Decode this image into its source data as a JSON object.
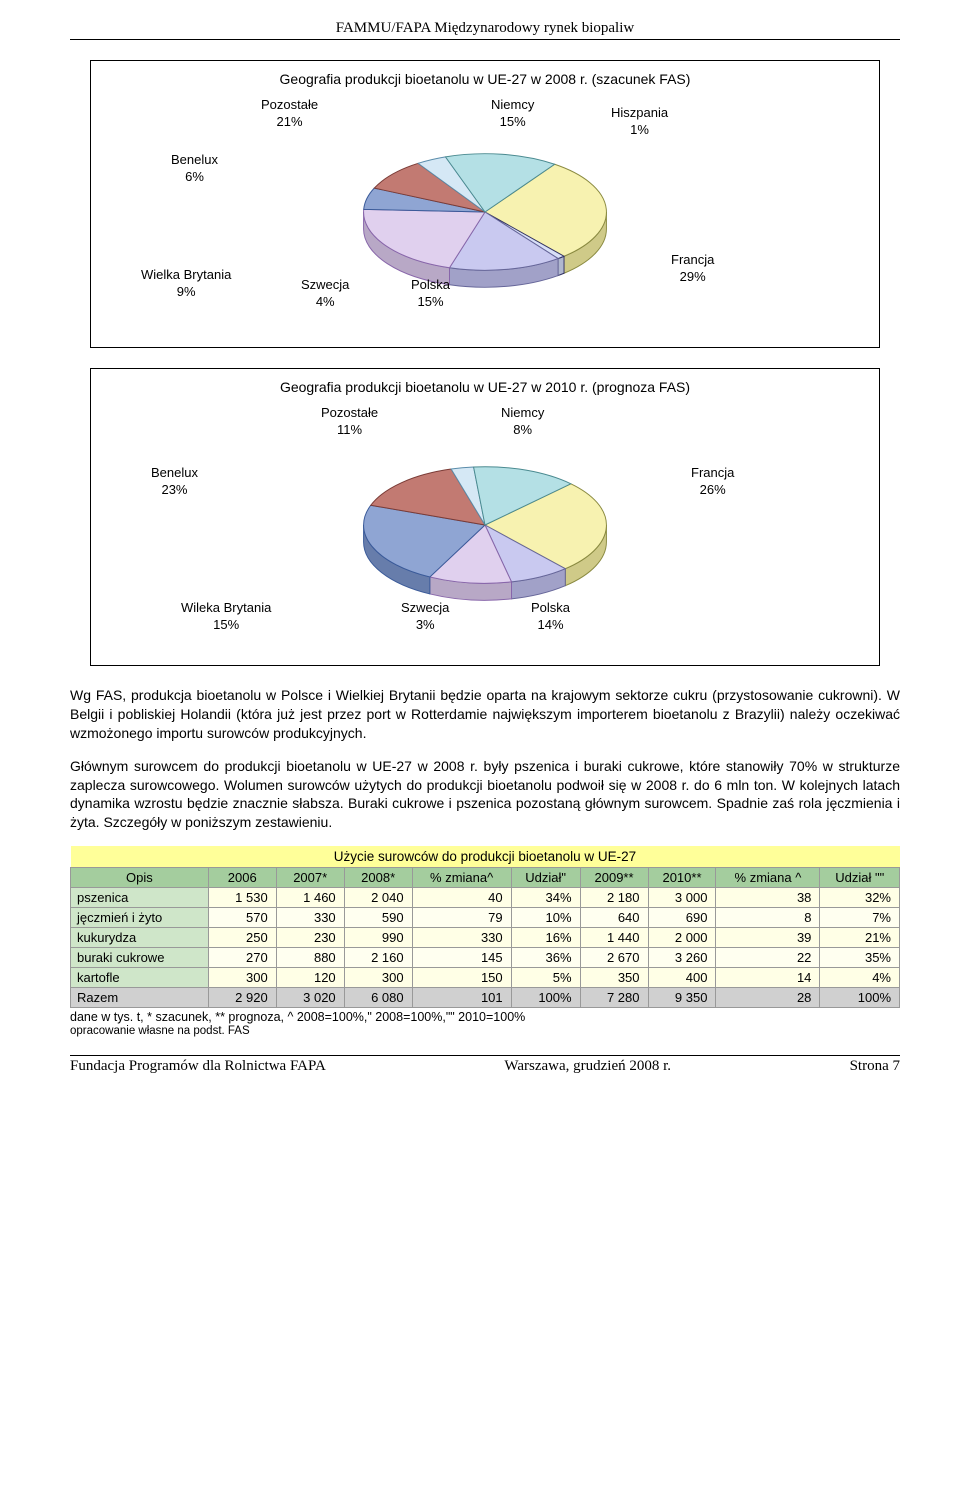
{
  "header": "FAMMU/FAPA  Międzynarodowy rynek biopaliw",
  "chart1": {
    "title": "Geografia produkcji bioetanolu w UE-27 w 2008 r. (szacunek FAS)",
    "slices": [
      {
        "label": "Francja",
        "pct": "29%",
        "val": 29,
        "color": "#f7f2b0",
        "stroke": "#8a8a40"
      },
      {
        "label": "Hiszpania",
        "pct": "1%",
        "val": 1,
        "color": "#d8dff7",
        "stroke": "#333366"
      },
      {
        "label": "Niemcy",
        "pct": "15%",
        "val": 15,
        "color": "#c9c9f0",
        "stroke": "#666699"
      },
      {
        "label": "Pozostałe",
        "pct": "21%",
        "val": 21,
        "color": "#e0d0ee",
        "stroke": "#8866aa"
      },
      {
        "label": "Benelux",
        "pct": "6%",
        "val": 6,
        "color": "#8fa5d3",
        "stroke": "#3a5a99"
      },
      {
        "label": "Wielka Brytania",
        "pct": "9%",
        "val": 9,
        "color": "#c27a72",
        "stroke": "#7a3b36"
      },
      {
        "label": "Szwecja",
        "pct": "4%",
        "val": 4,
        "color": "#d5e8f5",
        "stroke": "#5a8caa"
      },
      {
        "label": "Polska",
        "pct": "15%",
        "val": 15,
        "color": "#b4e0e5",
        "stroke": "#4a8a90"
      }
    ],
    "labels": {
      "pozostale": {
        "name": "Pozostałe",
        "pct": "21%"
      },
      "benelux": {
        "name": "Benelux",
        "pct": "6%"
      },
      "niemcy": {
        "name": "Niemcy",
        "pct": "15%"
      },
      "hiszpania": {
        "name": "Hiszpania",
        "pct": "1%"
      },
      "wb": {
        "name": "Wielka Brytania",
        "pct": "9%"
      },
      "szwecja": {
        "name": "Szwecja",
        "pct": "4%"
      },
      "polska": {
        "name": "Polska",
        "pct": "15%"
      },
      "francja": {
        "name": "Francja",
        "pct": "29%"
      }
    }
  },
  "chart2": {
    "title": "Geografia produkcji bioetanolu w UE-27 w 2010 r. (prognoza FAS)",
    "slices": [
      {
        "label": "Francja",
        "pct": "26%",
        "val": 26,
        "color": "#f7f2b0",
        "stroke": "#8a8a40"
      },
      {
        "label": "Niemcy",
        "pct": "8%",
        "val": 8,
        "color": "#c9c9f0",
        "stroke": "#666699"
      },
      {
        "label": "Pozostałe",
        "pct": "11%",
        "val": 11,
        "color": "#e0d0ee",
        "stroke": "#8866aa"
      },
      {
        "label": "Benelux",
        "pct": "23%",
        "val": 23,
        "color": "#8fa5d3",
        "stroke": "#3a5a99"
      },
      {
        "label": "Wileka Brytania",
        "pct": "15%",
        "val": 15,
        "color": "#c27a72",
        "stroke": "#7a3b36"
      },
      {
        "label": "Szwecja",
        "pct": "3%",
        "val": 3,
        "color": "#d5e8f5",
        "stroke": "#5a8caa"
      },
      {
        "label": "Polska",
        "pct": "14%",
        "val": 14,
        "color": "#b4e0e5",
        "stroke": "#4a8a90"
      }
    ],
    "labels": {
      "pozostale": {
        "name": "Pozostałe",
        "pct": "11%"
      },
      "niemcy": {
        "name": "Niemcy",
        "pct": "8%"
      },
      "benelux": {
        "name": "Benelux",
        "pct": "23%"
      },
      "francja": {
        "name": "Francja",
        "pct": "26%"
      },
      "wb": {
        "name": "Wileka Brytania",
        "pct": "15%"
      },
      "szwecja": {
        "name": "Szwecja",
        "pct": "3%"
      },
      "polska": {
        "name": "Polska",
        "pct": "14%"
      }
    }
  },
  "para1": "Wg FAS, produkcja bioetanolu w Polsce i Wielkiej Brytanii będzie oparta na krajowym sektorze cukru (przystosowanie cukrowni). W Belgii i pobliskiej Holandii (która już jest przez port w Rotterdamie największym importerem bioetanolu z Brazylii) należy oczekiwać wzmożonego importu surowców produkcyjnych.",
  "para2": "Głównym surowcem do produkcji bioetanolu w UE-27 w 2008 r. były pszenica i buraki cukrowe, które stanowiły 70% w strukturze zaplecza surowcowego. Wolumen surowców użytych do produkcji bioetanolu podwoił się w 2008 r. do 6 mln ton. W kolejnych latach dynamika wzrostu będzie znacznie słabsza. Buraki cukrowe i pszenica pozostaną głównym surowcem. Spadnie zaś rola jęczmienia i żyta. Szczegóły w poniższym zestawieniu.",
  "table": {
    "title": "Użycie surowców do produkcji bioetanolu w UE-27",
    "columns": [
      "Opis",
      "2006",
      "2007*",
      "2008*",
      "% zmiana^",
      "Udział\"",
      "2009**",
      "2010**",
      "% zmiana ^",
      "Udział \"\""
    ],
    "rows": [
      [
        "pszenica",
        "1 530",
        "1 460",
        "2 040",
        "40",
        "34%",
        "2 180",
        "3 000",
        "38",
        "32%"
      ],
      [
        "jęczmień i żyto",
        "570",
        "330",
        "590",
        "79",
        "10%",
        "640",
        "690",
        "8",
        "7%"
      ],
      [
        "kukurydza",
        "250",
        "230",
        "990",
        "330",
        "16%",
        "1 440",
        "2 000",
        "39",
        "21%"
      ],
      [
        "buraki cukrowe",
        "270",
        "880",
        "2 160",
        "145",
        "36%",
        "2 670",
        "3 260",
        "22",
        "35%"
      ],
      [
        "kartofle",
        "300",
        "120",
        "300",
        "150",
        "5%",
        "350",
        "400",
        "14",
        "4%"
      ]
    ],
    "sum": [
      "Razem",
      "2 920",
      "3 020",
      "6 080",
      "101",
      "100%",
      "7 280",
      "9 350",
      "28",
      "100%"
    ],
    "note1": "dane w tys. t, * szacunek, ** prognoza, ^ 2008=100%,\" 2008=100%,\"\" 2010=100%",
    "note2": "opracowanie własne na podst. FAS"
  },
  "footer": {
    "left": "Fundacja Programów dla Rolnictwa FAPA",
    "center": "Warszawa, grudzień 2008 r.",
    "right": "Strona 7"
  },
  "colors": {
    "table_title_bg": "#ffff99",
    "table_head_bg": "#a4cd9e",
    "table_left_bg": "#cfe6c9",
    "table_sum_bg": "#d0d0d0"
  }
}
